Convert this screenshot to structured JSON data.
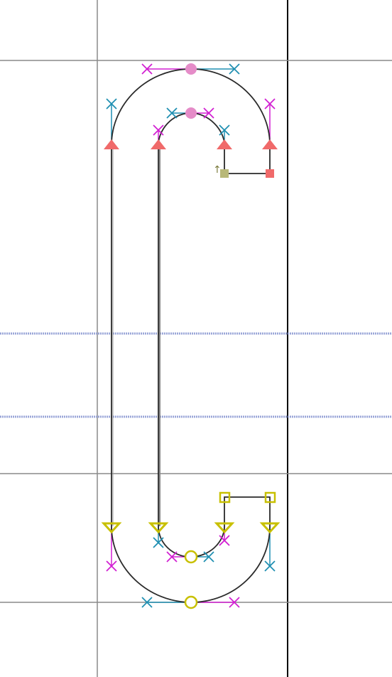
{
  "editor": {
    "view": "glyph-outline-editor",
    "glyph_arrow_marker": "↑"
  },
  "colors": {
    "background": "#ffffff",
    "guide_line": "#8a8a8a",
    "advance_line": "#000000",
    "dotted_guide": "#9aa6d8",
    "outline": "#2a2a2a",
    "inner_stroke": "#777777",
    "handle_magenta": "#d21fd2",
    "handle_cyan": "#1f8fb2",
    "extremum_point": "#e58cc8",
    "corner_point_red": "#f06a6a",
    "start_point": "#b8b878",
    "curve_point_yellow": "#c8c000"
  },
  "legend_icons": [
    "off-curve-handle-x",
    "smooth-extremum-point",
    "tangent-point-triangle",
    "corner-point-square",
    "start-point-square",
    "curve-point-circle"
  ]
}
